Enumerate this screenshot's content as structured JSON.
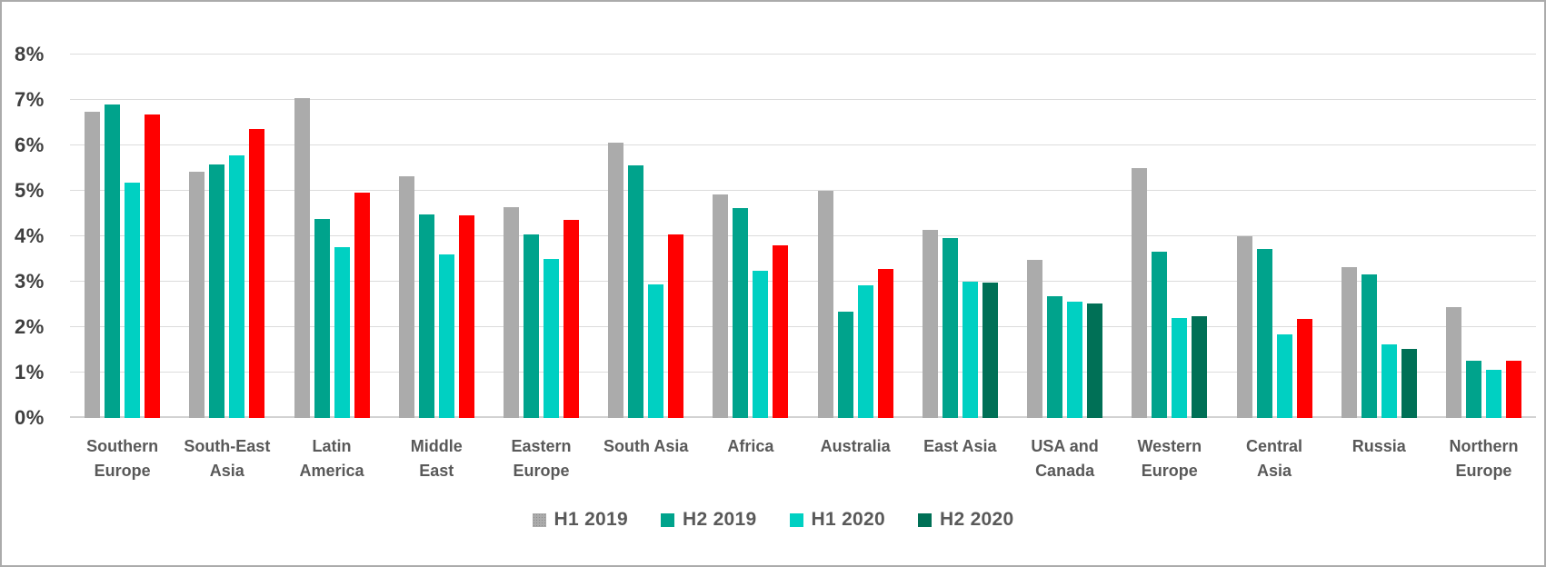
{
  "chart_data": {
    "type": "bar",
    "title": "",
    "xlabel": "",
    "ylabel": "",
    "ylim": [
      0,
      8
    ],
    "grid": true,
    "legend_position": "bottom",
    "y_ticks": [
      "0%",
      "1%",
      "2%",
      "3%",
      "4%",
      "5%",
      "6%",
      "7%",
      "8%"
    ],
    "categories": [
      "Southern Europe",
      "South-East Asia",
      "Latin America",
      "Middle East",
      "Eastern Europe",
      "South Asia",
      "Africa",
      "Australia",
      "East Asia",
      "USA and Canada",
      "Western Europe",
      "Central Asia",
      "Russia",
      "Northern Europe"
    ],
    "category_label_lines": [
      [
        "Southern",
        "Europe"
      ],
      [
        "South-East",
        "Asia"
      ],
      [
        "Latin",
        "America"
      ],
      [
        "Middle",
        "East"
      ],
      [
        "Eastern",
        "Europe"
      ],
      [
        "South Asia"
      ],
      [
        "Africa"
      ],
      [
        "Australia"
      ],
      [
        "East Asia"
      ],
      [
        "USA and",
        "Canada"
      ],
      [
        "Western",
        "Europe"
      ],
      [
        "Central",
        "Asia"
      ],
      [
        "Russia"
      ],
      [
        "Northern",
        "Europe"
      ]
    ],
    "series": [
      {
        "name": "H1 2019",
        "color": "#ababab",
        "textured": true,
        "values": [
          6.74,
          5.42,
          7.05,
          5.33,
          4.64,
          6.07,
          4.93,
          5.0,
          4.15,
          3.49,
          5.51,
          4.0,
          3.32,
          2.45
        ]
      },
      {
        "name": "H2 2019",
        "color": "#00a38c",
        "values": [
          6.91,
          5.58,
          4.38,
          4.49,
          4.05,
          5.56,
          4.63,
          2.34,
          3.97,
          2.69,
          3.66,
          3.73,
          3.16,
          1.26
        ]
      },
      {
        "name": "H1 2020",
        "color": "#00d0c2",
        "values": [
          5.19,
          5.79,
          3.77,
          3.61,
          3.5,
          2.95,
          3.24,
          2.93,
          3.0,
          2.57,
          2.21,
          1.85,
          1.62,
          1.06
        ]
      },
      {
        "name": "H2 2020",
        "color": "#007056",
        "highlight_color": "#ff0000",
        "highlighted_categories": [
          "Southern Europe",
          "South-East Asia",
          "Latin America",
          "Middle East",
          "Eastern Europe",
          "South Asia",
          "Africa",
          "Australia",
          "Central Asia",
          "Northern Europe"
        ],
        "values": [
          6.69,
          6.36,
          4.97,
          4.47,
          4.36,
          4.05,
          3.81,
          3.28,
          2.98,
          2.53,
          2.25,
          2.18,
          1.52,
          1.27
        ]
      }
    ],
    "legend": [
      {
        "label": "H1 2019",
        "color": "#ababab",
        "textured": true
      },
      {
        "label": "H2 2019",
        "color": "#00a38c"
      },
      {
        "label": "H1 2020",
        "color": "#00d0c2"
      },
      {
        "label": "H2 2020",
        "color": "#007056"
      }
    ]
  },
  "colors": {
    "grid": "#dcdcdc",
    "axis_line": "#d2d2d2",
    "tick_text": "#3f3f3f",
    "category_text": "#595959",
    "legend_text": "#595959",
    "background": "#ffffff",
    "border": "#ababab"
  }
}
